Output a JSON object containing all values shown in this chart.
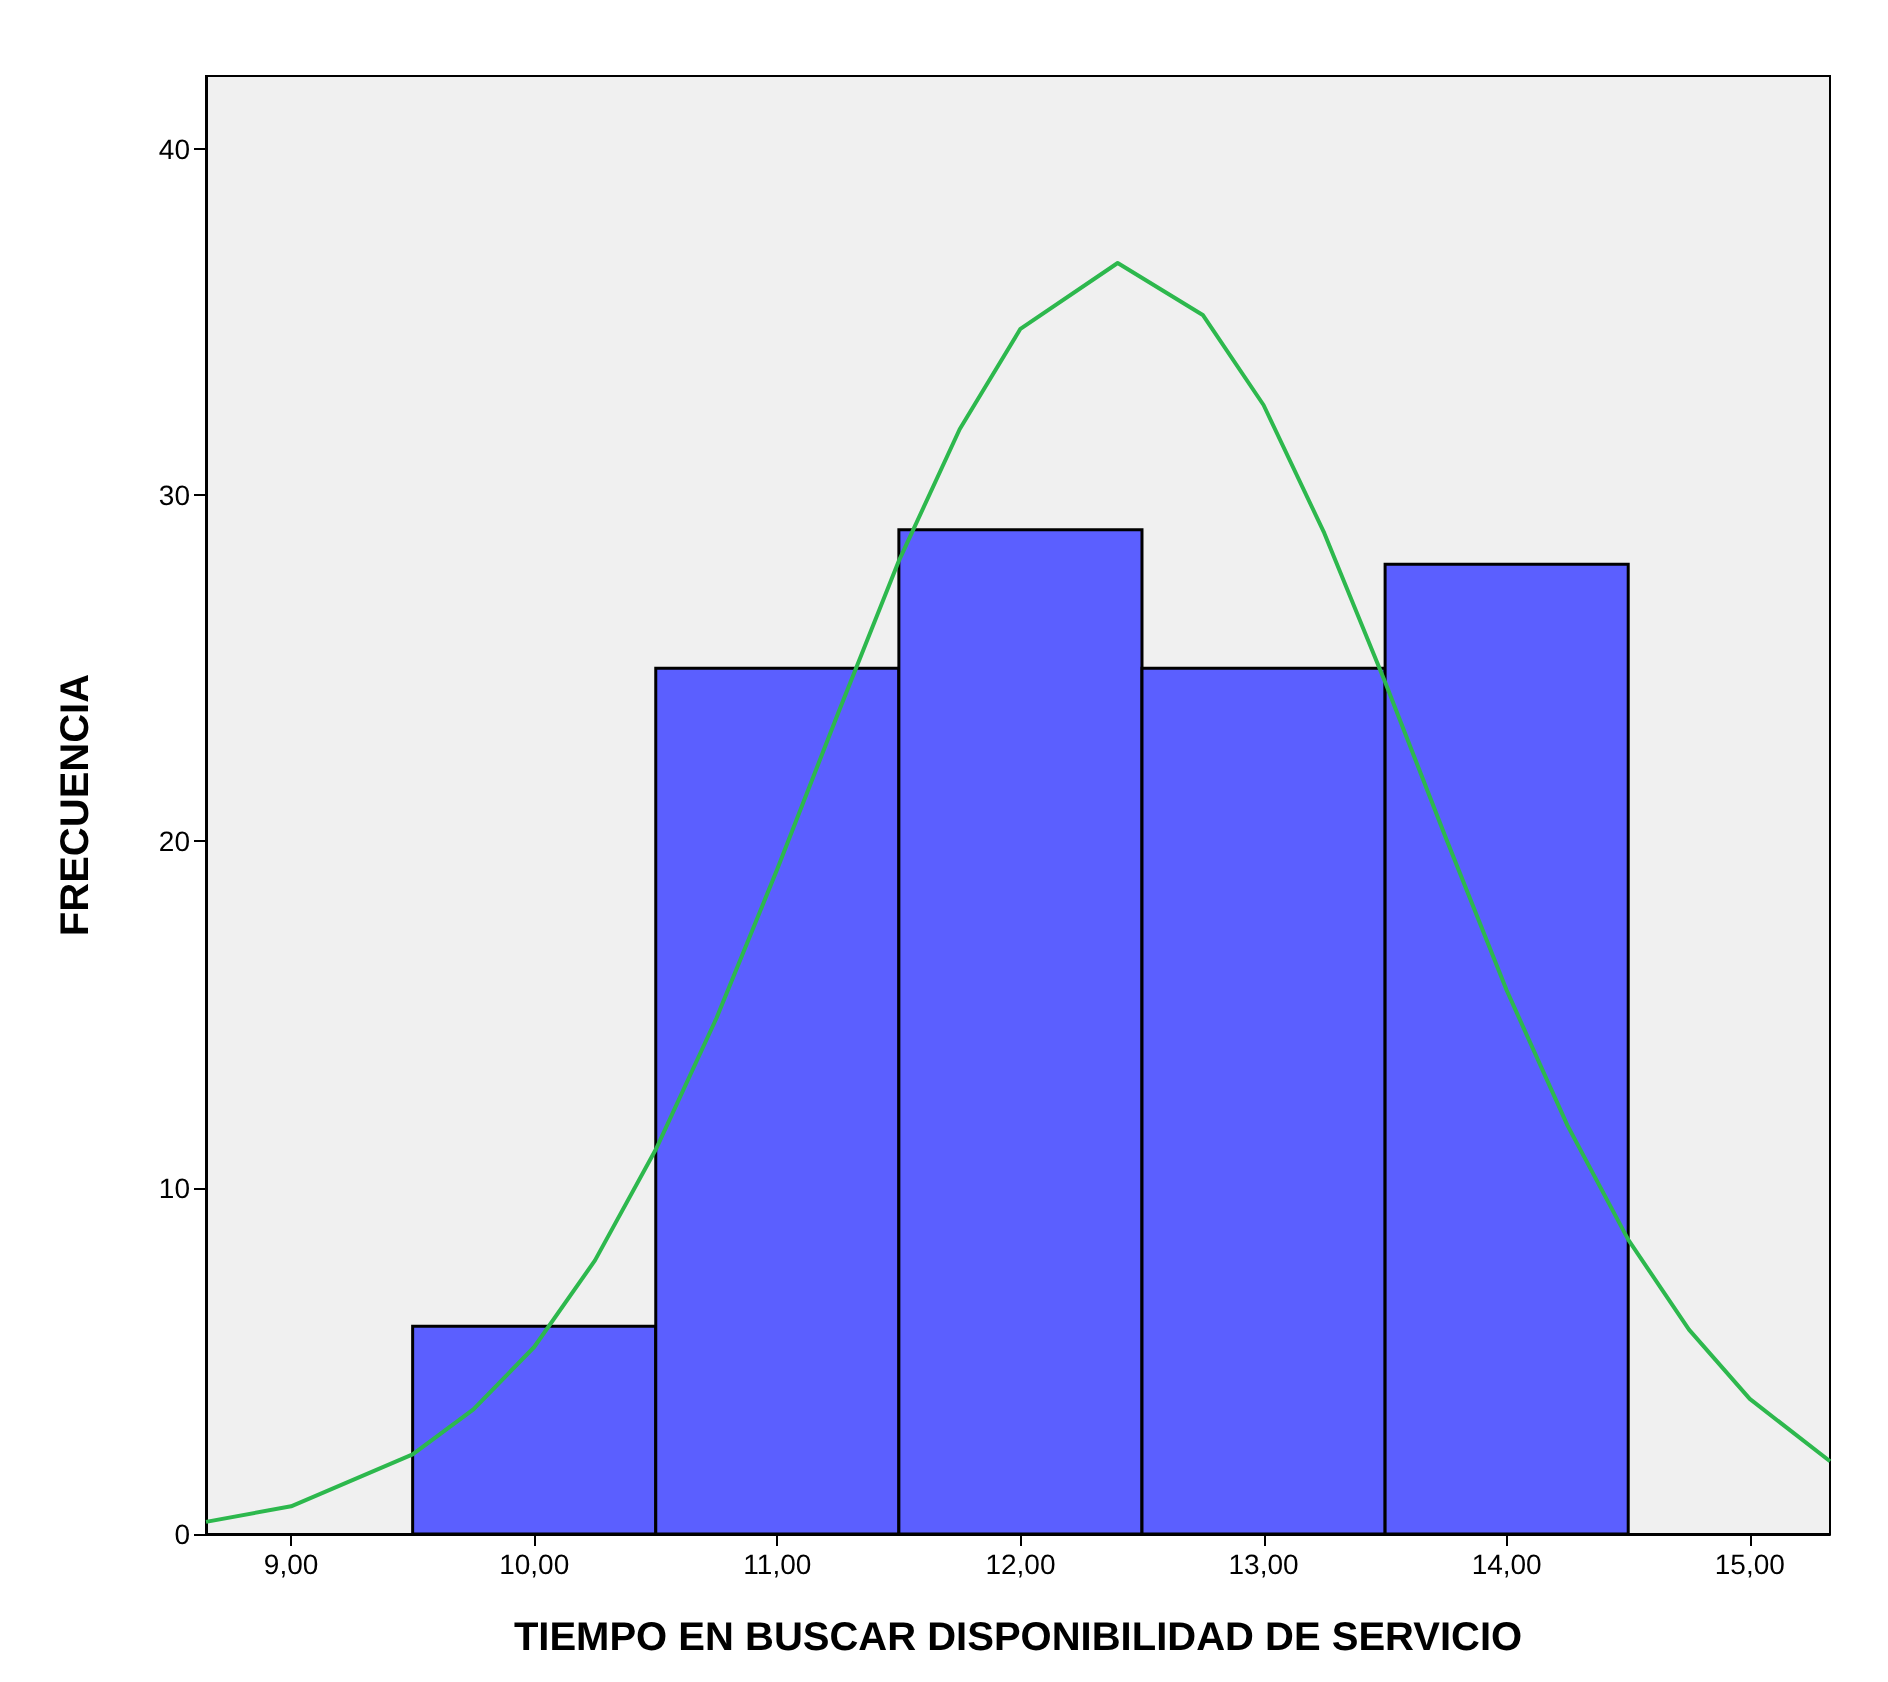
{
  "chart_data": {
    "type": "histogram",
    "xlabel": "TIEMPO EN BUSCAR DISPONIBILIDAD DE SERVICIO",
    "ylabel": "FRECUENCIA",
    "bins": [
      9.5,
      10.5,
      11.5,
      12.5,
      13.5,
      14.5
    ],
    "values": [
      6,
      25,
      29,
      25,
      28
    ],
    "color": "#5b5fff",
    "series": [
      {
        "type": "line",
        "color": "#2db84d",
        "x": [
          8.65,
          9.0,
          9.5,
          9.75,
          10.0,
          10.25,
          10.5,
          10.75,
          11.0,
          11.25,
          11.5,
          11.75,
          12.0,
          12.4,
          12.75,
          13.0,
          13.25,
          13.5,
          13.75,
          14.0,
          14.25,
          14.5,
          14.75,
          15.0,
          15.33
        ],
        "values": [
          0.35,
          0.8,
          2.3,
          3.6,
          5.4,
          7.9,
          11.1,
          14.9,
          19.2,
          23.7,
          28.1,
          31.9,
          34.8,
          36.7,
          35.2,
          32.6,
          28.9,
          24.6,
          20.1,
          15.7,
          11.8,
          8.5,
          5.9,
          3.9,
          2.1
        ]
      }
    ],
    "xlim": [
      8.65,
      15.33
    ],
    "ylim": [
      0,
      42.1
    ],
    "xticks": [
      {
        "value": 9,
        "label": "9,00"
      },
      {
        "value": 10,
        "label": "10,00"
      },
      {
        "value": 11,
        "label": "11,00"
      },
      {
        "value": 12,
        "label": "12,00"
      },
      {
        "value": 13,
        "label": "13,00"
      },
      {
        "value": 14,
        "label": "14,00"
      },
      {
        "value": 15,
        "label": "15,00"
      }
    ],
    "yticks": [
      0,
      10,
      20,
      30,
      40
    ],
    "grid": false,
    "marker": "none"
  }
}
